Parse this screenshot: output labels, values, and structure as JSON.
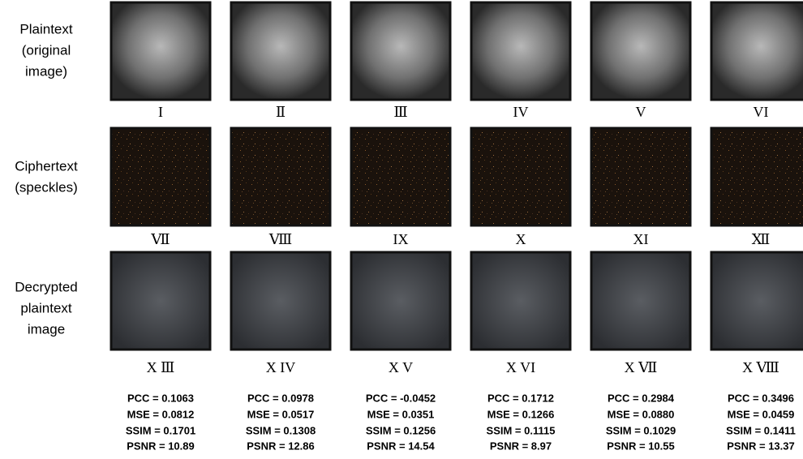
{
  "row_labels": [
    [
      "Plaintext",
      "(original",
      "image)"
    ],
    [
      "Ciphertext",
      "(speckles)"
    ],
    [
      "Decrypted",
      "plaintext",
      "image"
    ]
  ],
  "tile_labels": [
    [
      "I",
      "Ⅱ",
      "Ⅲ",
      "IV",
      "V",
      "VI"
    ],
    [
      "Ⅶ",
      "Ⅷ",
      "IX",
      "X",
      "XI",
      "Ⅻ"
    ],
    [
      "X Ⅲ",
      "X IV",
      "X V",
      "X VI",
      "X Ⅶ",
      "X Ⅷ"
    ]
  ],
  "metrics": [
    [
      "PCC = 0.1063",
      "MSE = 0.0812",
      "SSIM = 0.1701",
      "PSNR = 10.89"
    ],
    [
      "PCC = 0.0978",
      "MSE = 0.0517",
      "SSIM = 0.1308",
      "PSNR = 12.86"
    ],
    [
      "PCC = -0.0452",
      "MSE = 0.0351",
      "SSIM = 0.1256",
      "PSNR = 14.54"
    ],
    [
      "PCC = 0.1712",
      "MSE = 0.1266",
      "SSIM = 0.1115",
      "PSNR = 8.97"
    ],
    [
      "PCC = 0.2984",
      "MSE = 0.0880",
      "SSIM = 0.1029",
      "PSNR = 10.55"
    ],
    [
      "PCC = 0.3496",
      "MSE = 0.0459",
      "SSIM = 0.1411",
      "PSNR = 13.37"
    ]
  ]
}
